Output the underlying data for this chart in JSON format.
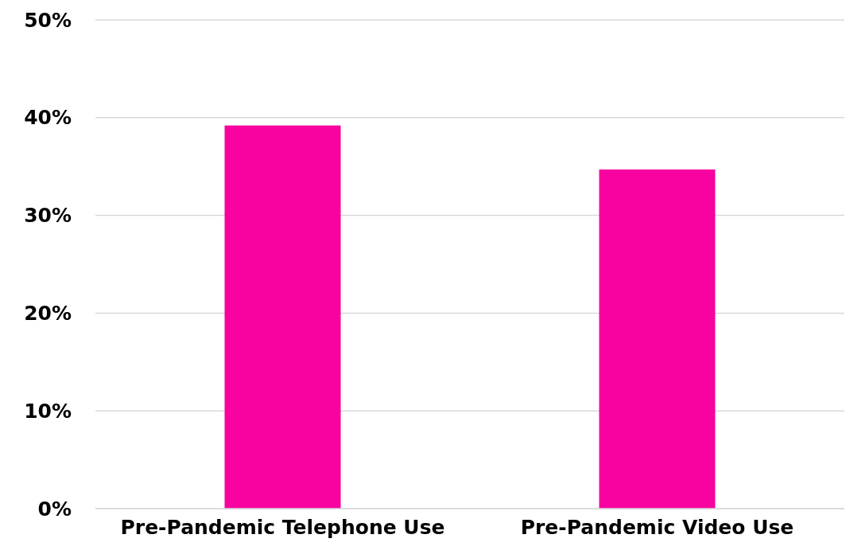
{
  "chart_data": {
    "type": "bar",
    "categories": [
      "Pre-Pandemic Telephone Use",
      "Pre-Pandemic Video Use"
    ],
    "values": [
      39.2,
      34.7
    ],
    "color": "#f8039f",
    "ylim": [
      0,
      50
    ],
    "yticks": [
      {
        "value": 0,
        "label": "0%"
      },
      {
        "value": 10,
        "label": "10%"
      },
      {
        "value": 20,
        "label": "20%"
      },
      {
        "value": 30,
        "label": "30%"
      },
      {
        "value": 40,
        "label": "40%"
      },
      {
        "value": 50,
        "label": "50%"
      }
    ],
    "grid": "y"
  }
}
